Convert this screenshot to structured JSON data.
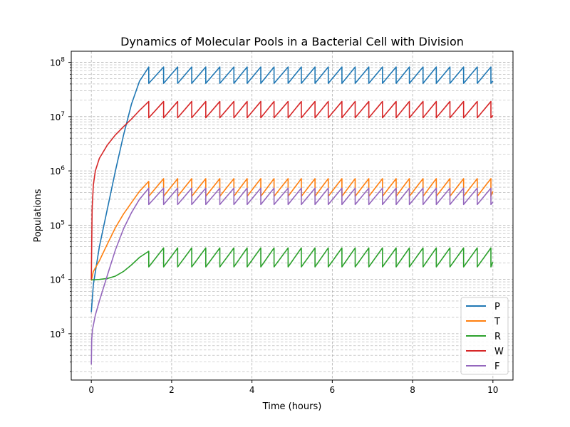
{
  "chart_data": {
    "type": "line",
    "title": "Dynamics of Molecular Pools in a Bacterial Cell with Division",
    "xlabel": "Time (hours)",
    "ylabel": "Populations",
    "xlim": [
      -0.5,
      10.5
    ],
    "ylim": [
      140,
      160000000
    ],
    "yscale": "log",
    "grid": "both (major and minor), dashed",
    "legend_location": "lower-right",
    "x_ticks": [
      "0",
      "2",
      "4",
      "6",
      "8",
      "10"
    ],
    "x_tick_values": [
      0,
      2,
      4,
      6,
      8,
      10
    ],
    "y_ticks": [
      {
        "base": "10",
        "exp": "3",
        "value": 1000
      },
      {
        "base": "10",
        "exp": "4",
        "value": 10000
      },
      {
        "base": "10",
        "exp": "5",
        "value": 100000
      },
      {
        "base": "10",
        "exp": "6",
        "value": 1000000
      },
      {
        "base": "10",
        "exp": "7",
        "value": 10000000
      },
      {
        "base": "10",
        "exp": "8",
        "value": 100000000
      }
    ],
    "division_times_hours": [
      1.43,
      1.8,
      2.15,
      2.5,
      2.85,
      3.2,
      3.55,
      3.88,
      4.22,
      4.55,
      4.9,
      5.23,
      5.57,
      5.9,
      6.24,
      6.57,
      6.91,
      7.25,
      7.59,
      7.92,
      8.26,
      8.59,
      8.93,
      9.27,
      9.61,
      9.95
    ],
    "series": [
      {
        "name": "P",
        "color": "#1f77b4",
        "initial": 2500,
        "growth_points": [
          [
            0,
            2500
          ],
          [
            0.05,
            8000
          ],
          [
            0.2,
            40000
          ],
          [
            0.4,
            200000
          ],
          [
            0.6,
            1000000
          ],
          [
            0.8,
            4500000
          ],
          [
            1.0,
            17000000
          ],
          [
            1.2,
            45000000
          ],
          [
            1.43,
            82000000
          ]
        ],
        "post_division": 41000000,
        "pre_division_peak": 82000000,
        "end_value": 42000000
      },
      {
        "name": "T",
        "color": "#ff7f0e",
        "initial": 9500,
        "growth_points": [
          [
            0,
            9500
          ],
          [
            0.05,
            14000
          ],
          [
            0.2,
            22000
          ],
          [
            0.4,
            45000
          ],
          [
            0.6,
            90000
          ],
          [
            0.8,
            160000
          ],
          [
            1.0,
            260000
          ],
          [
            1.2,
            420000
          ],
          [
            1.43,
            640000
          ]
        ],
        "post_division": 340000,
        "pre_division_peak": 720000,
        "end_value": 420000
      },
      {
        "name": "R",
        "color": "#2ca02c",
        "initial": 9800,
        "growth_points": [
          [
            0,
            9800
          ],
          [
            0.2,
            10000
          ],
          [
            0.4,
            10400
          ],
          [
            0.6,
            11500
          ],
          [
            0.8,
            14000
          ],
          [
            1.0,
            18500
          ],
          [
            1.2,
            25500
          ],
          [
            1.43,
            33000
          ]
        ],
        "post_division": 17000,
        "pre_division_peak": 38000,
        "end_value": 21000
      },
      {
        "name": "W",
        "color": "#d62728",
        "initial": 10000,
        "growth_points": [
          [
            0,
            10000
          ],
          [
            0.02,
            200000
          ],
          [
            0.05,
            550000
          ],
          [
            0.1,
            1000000
          ],
          [
            0.2,
            1700000
          ],
          [
            0.4,
            3000000
          ],
          [
            0.6,
            4600000
          ],
          [
            0.8,
            6500000
          ],
          [
            1.0,
            9000000
          ],
          [
            1.2,
            13000000
          ],
          [
            1.43,
            19000000
          ]
        ],
        "post_division": 9500000,
        "pre_division_peak": 19000000,
        "end_value": 10500000
      },
      {
        "name": "F",
        "color": "#9467bd",
        "initial": 270,
        "growth_points": [
          [
            0,
            270
          ],
          [
            0.01,
            800
          ],
          [
            0.03,
            1200
          ],
          [
            0.1,
            2200
          ],
          [
            0.2,
            4000
          ],
          [
            0.4,
            12000
          ],
          [
            0.6,
            35000
          ],
          [
            0.8,
            85000
          ],
          [
            1.0,
            170000
          ],
          [
            1.2,
            300000
          ],
          [
            1.43,
            480000
          ]
        ],
        "post_division": 240000,
        "pre_division_peak": 480000,
        "end_value": 260000
      }
    ]
  }
}
